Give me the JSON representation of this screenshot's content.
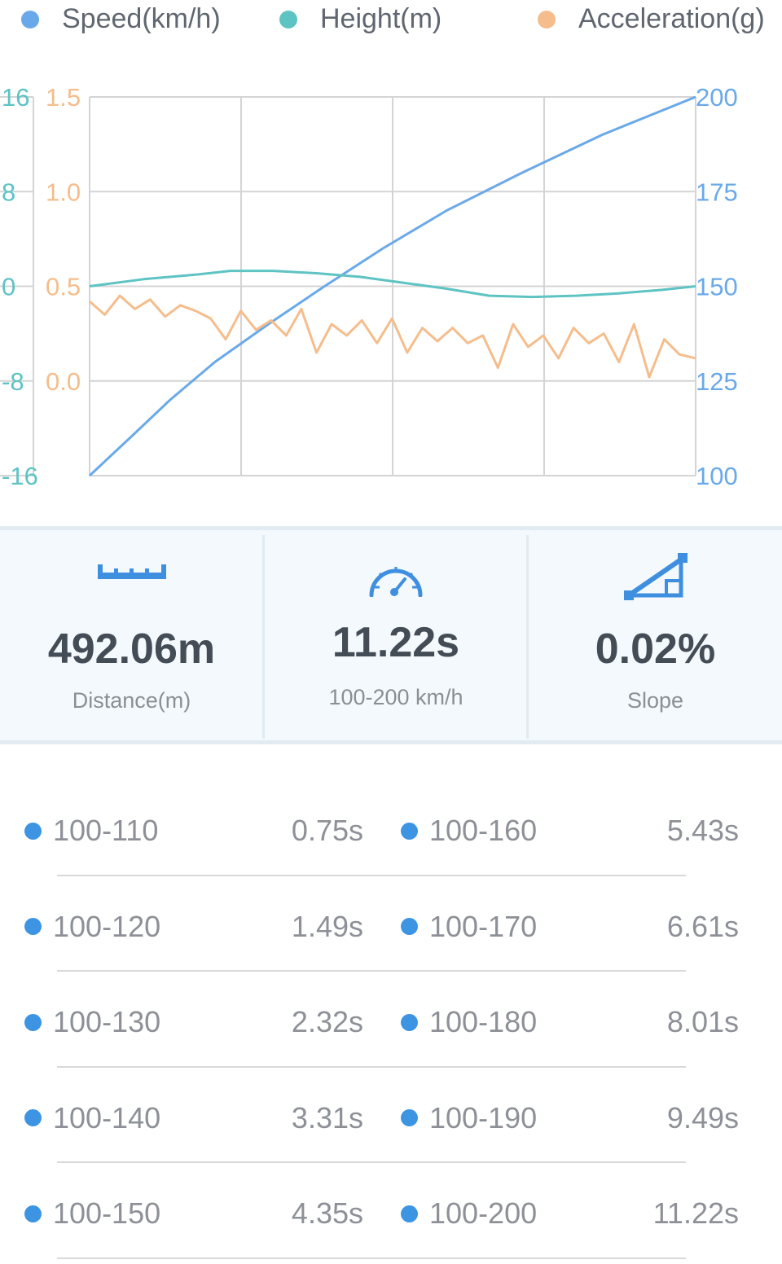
{
  "legend": [
    {
      "name": "Speed(km/h)",
      "color": "#6aa9e9"
    },
    {
      "name": "Height(m)",
      "color": "#5ec3c3"
    },
    {
      "name": "Acceleration(g)",
      "color": "#f5bd8c"
    }
  ],
  "chart_data": {
    "type": "line",
    "x_range": [
      0,
      11.22
    ],
    "grid": true,
    "axes": {
      "height": {
        "color": "#5ec3c3",
        "side": "left-outer",
        "range": [
          -16,
          16
        ],
        "ticks": [
          "16",
          "8",
          "0",
          "-8",
          "-16"
        ]
      },
      "acceleration": {
        "color": "#f5bd8c",
        "side": "left-inner",
        "range": [
          -0.5,
          1.5
        ],
        "ticks": [
          "1.5",
          "1.0",
          "0.5",
          "0.0"
        ]
      },
      "speed": {
        "color": "#6aa9e9",
        "side": "right",
        "tick_values": [
          200,
          175,
          150,
          125,
          100
        ],
        "ticks": [
          "200",
          "175",
          "150",
          "125",
          "100"
        ]
      }
    },
    "series": [
      {
        "name": "Speed(km/h)",
        "axis": "speed",
        "color": "#6aa9e9",
        "x": [
          0,
          0.75,
          1.49,
          2.32,
          3.31,
          4.35,
          5.43,
          6.61,
          8.01,
          9.49,
          11.22
        ],
        "y": [
          100,
          110,
          120,
          130,
          140,
          150,
          160,
          170,
          180,
          190,
          200
        ]
      },
      {
        "name": "Height(m)",
        "axis": "height",
        "color": "#5ec3c3",
        "x": [
          0,
          1.0,
          2.0,
          2.6,
          3.4,
          4.2,
          5.0,
          5.8,
          6.6,
          7.4,
          8.2,
          9.0,
          9.8,
          10.6,
          11.22
        ],
        "y": [
          0.0,
          0.6,
          1.0,
          1.3,
          1.3,
          1.1,
          0.8,
          0.3,
          -0.2,
          -0.8,
          -0.9,
          -0.8,
          -0.6,
          -0.3,
          0.0
        ],
        "x_values_approx": true
      },
      {
        "name": "Acceleration(g)",
        "axis": "acceleration",
        "color": "#f5bd8c",
        "x": [
          0,
          0.28,
          0.56,
          0.84,
          1.12,
          1.4,
          1.68,
          1.96,
          2.24,
          2.52,
          2.8,
          3.08,
          3.36,
          3.64,
          3.92,
          4.2,
          4.48,
          4.76,
          5.04,
          5.32,
          5.6,
          5.88,
          6.16,
          6.44,
          6.72,
          7.0,
          7.28,
          7.56,
          7.84,
          8.12,
          8.4,
          8.68,
          8.96,
          9.24,
          9.52,
          9.8,
          10.08,
          10.36,
          10.64,
          10.92,
          11.22
        ],
        "y": [
          0.42,
          0.35,
          0.45,
          0.38,
          0.43,
          0.34,
          0.4,
          0.37,
          0.33,
          0.22,
          0.37,
          0.27,
          0.32,
          0.24,
          0.38,
          0.15,
          0.3,
          0.24,
          0.32,
          0.2,
          0.33,
          0.15,
          0.28,
          0.21,
          0.28,
          0.2,
          0.24,
          0.07,
          0.3,
          0.18,
          0.24,
          0.12,
          0.28,
          0.2,
          0.25,
          0.1,
          0.3,
          0.02,
          0.22,
          0.14,
          0.12
        ]
      }
    ]
  },
  "stats": [
    {
      "icon": "ruler-icon",
      "value": "492.06m",
      "label": "Distance(m)"
    },
    {
      "icon": "speedometer-icon",
      "value": "11.22s",
      "label": "100-200 km/h"
    },
    {
      "icon": "slope-icon",
      "value": "0.02%",
      "label": "Slope"
    }
  ],
  "splits": [
    {
      "left": {
        "range": "100-110",
        "time": "0.75s"
      },
      "right": {
        "range": "100-160",
        "time": "5.43s"
      }
    },
    {
      "left": {
        "range": "100-120",
        "time": "1.49s"
      },
      "right": {
        "range": "100-170",
        "time": "6.61s"
      }
    },
    {
      "left": {
        "range": "100-130",
        "time": "2.32s"
      },
      "right": {
        "range": "100-180",
        "time": "8.01s"
      }
    },
    {
      "left": {
        "range": "100-140",
        "time": "3.31s"
      },
      "right": {
        "range": "100-190",
        "time": "9.49s"
      }
    },
    {
      "left": {
        "range": "100-150",
        "time": "4.35s"
      },
      "right": {
        "range": "100-200",
        "time": "11.22s"
      }
    }
  ],
  "colors": {
    "accent": "#3f8fe0",
    "dot": "#3d94e3",
    "value_text": "#444c56"
  }
}
